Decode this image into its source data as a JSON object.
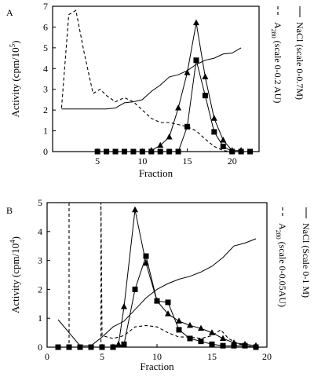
{
  "chart_data": [
    {
      "panel_label": "A",
      "type": "line",
      "xlabel": "Fraction",
      "ylabel": "Activity (cpm/10",
      "ylabel_sup": "5",
      "ylabel_close": ")",
      "right_labels": [
        {
          "text": "A",
          "sub": "280",
          "rest": " (scale 0-0.2 AU)",
          "legend_style": "dashed"
        },
        {
          "text": "NaCl",
          "sub": "",
          "rest": "  (scale 0-0.7M)",
          "legend_style": "solid"
        }
      ],
      "xlim": [
        0,
        23
      ],
      "ylim": [
        0,
        7
      ],
      "xticks": [
        5,
        10,
        15,
        20
      ],
      "yticks": [
        0,
        1,
        2,
        3,
        4,
        5,
        6,
        7
      ],
      "series": [
        {
          "style": "dashed",
          "marker": "none",
          "points": [
            [
              1,
              2.1
            ],
            [
              1.8,
              6.6
            ],
            [
              2.6,
              6.8
            ],
            [
              3.5,
              4.8
            ],
            [
              4.5,
              2.8
            ],
            [
              5.3,
              3.0
            ],
            [
              6,
              2.7
            ],
            [
              7,
              2.4
            ],
            [
              8,
              2.6
            ],
            [
              9,
              2.4
            ],
            [
              10,
              2.0
            ],
            [
              11,
              1.6
            ],
            [
              12,
              1.4
            ],
            [
              13,
              1.4
            ],
            [
              14,
              1.3
            ],
            [
              15,
              1.2
            ],
            [
              16,
              1.0
            ],
            [
              17,
              0.6
            ],
            [
              18,
              0.25
            ],
            [
              19,
              0.05
            ],
            [
              20,
              0.0
            ]
          ]
        },
        {
          "style": "solid",
          "marker": "none",
          "points": [
            [
              1,
              2.05
            ],
            [
              6,
              2.05
            ],
            [
              7,
              2.1
            ],
            [
              8,
              2.35
            ],
            [
              9,
              2.4
            ],
            [
              10,
              2.5
            ],
            [
              11,
              2.9
            ],
            [
              12,
              3.2
            ],
            [
              13,
              3.6
            ],
            [
              14,
              3.7
            ],
            [
              15,
              3.9
            ],
            [
              16,
              4.2
            ],
            [
              17,
              4.4
            ],
            [
              18,
              4.5
            ],
            [
              19,
              4.7
            ],
            [
              20,
              4.75
            ],
            [
              21,
              5.0
            ]
          ]
        },
        {
          "style": "solid",
          "marker": "triangle",
          "points": [
            [
              11,
              0.05
            ],
            [
              12,
              0.3
            ],
            [
              13,
              0.7
            ],
            [
              14,
              2.1
            ],
            [
              15,
              3.8
            ],
            [
              16,
              6.2
            ],
            [
              17,
              3.6
            ],
            [
              18,
              1.6
            ],
            [
              19,
              0.55
            ],
            [
              20,
              0.05
            ],
            [
              21,
              0.05
            ]
          ]
        },
        {
          "style": "solid",
          "marker": "square",
          "points": [
            [
              5,
              0.0
            ],
            [
              6,
              0.0
            ],
            [
              7,
              0.0
            ],
            [
              8,
              0.0
            ],
            [
              9,
              0.0
            ],
            [
              10,
              0.0
            ],
            [
              11,
              0.0
            ],
            [
              12,
              0.0
            ],
            [
              13,
              0.0
            ],
            [
              14,
              0.0
            ],
            [
              15,
              1.2
            ],
            [
              16,
              4.4
            ],
            [
              17,
              2.7
            ],
            [
              18,
              0.95
            ],
            [
              19,
              0.25
            ],
            [
              20,
              0.0
            ],
            [
              21,
              0.0
            ],
            [
              22,
              0.0
            ]
          ]
        }
      ]
    },
    {
      "panel_label": "B",
      "type": "line",
      "xlabel": "Fraction",
      "ylabel": "Activity (cpm/10",
      "ylabel_sup": "4",
      "ylabel_close": ")",
      "right_labels": [
        {
          "text": "A",
          "sub": "280",
          "rest": " (scale 0-0.05AU)",
          "legend_style": "dashed"
        },
        {
          "text": "NaCl",
          "sub": "",
          "rest": " (Scale 0-1 M)",
          "legend_style": "solid"
        }
      ],
      "xlim": [
        0,
        20
      ],
      "ylim": [
        0,
        5
      ],
      "xticks": [
        0,
        5,
        10,
        15,
        20
      ],
      "yticks": [
        0,
        1,
        2,
        3,
        4,
        5
      ],
      "series": [
        {
          "style": "dashed",
          "marker": "none",
          "points": [
            [
              2,
              5.0
            ],
            [
              2,
              0.0
            ],
            [
              4.9,
              0.0
            ],
            [
              4.9,
              5.0
            ],
            [
              5,
              0.4
            ],
            [
              6,
              0.3
            ],
            [
              7,
              0.4
            ],
            [
              8,
              0.7
            ],
            [
              9,
              0.75
            ],
            [
              10,
              0.7
            ],
            [
              11,
              0.5
            ],
            [
              12,
              0.35
            ],
            [
              13,
              0.35
            ],
            [
              14,
              0.3
            ],
            [
              15,
              0.4
            ],
            [
              15.8,
              0.6
            ],
            [
              16.5,
              0.3
            ],
            [
              17.5,
              0.1
            ],
            [
              18.5,
              0.05
            ]
          ]
        },
        {
          "style": "solid",
          "marker": "none",
          "points": [
            [
              1,
              0.95
            ],
            [
              2,
              0.5
            ],
            [
              3,
              0.05
            ],
            [
              4,
              0.05
            ],
            [
              5,
              0.35
            ],
            [
              6,
              0.7
            ],
            [
              7,
              0.9
            ],
            [
              8,
              1.3
            ],
            [
              9,
              1.7
            ],
            [
              10,
              2.0
            ],
            [
              11,
              2.2
            ],
            [
              12,
              2.35
            ],
            [
              13,
              2.45
            ],
            [
              14,
              2.6
            ],
            [
              15,
              2.8
            ],
            [
              16,
              3.1
            ],
            [
              17,
              3.5
            ],
            [
              18,
              3.6
            ],
            [
              19,
              3.75
            ]
          ]
        },
        {
          "style": "solid",
          "marker": "triangle",
          "points": [
            [
              6,
              0.0
            ],
            [
              6.5,
              0.1
            ],
            [
              7,
              1.4
            ],
            [
              8,
              4.75
            ],
            [
              9,
              2.9
            ],
            [
              10,
              1.6
            ],
            [
              11,
              1.15
            ],
            [
              12,
              0.9
            ],
            [
              13,
              0.75
            ],
            [
              14,
              0.65
            ],
            [
              15,
              0.5
            ],
            [
              16,
              0.3
            ],
            [
              17,
              0.15
            ],
            [
              18,
              0.1
            ],
            [
              19,
              0.05
            ]
          ]
        },
        {
          "style": "solid",
          "marker": "square",
          "points": [
            [
              1,
              0.0
            ],
            [
              2,
              0.0
            ],
            [
              3,
              0.0
            ],
            [
              4,
              0.0
            ],
            [
              5,
              0.0
            ],
            [
              6,
              0.0
            ],
            [
              7,
              0.1
            ],
            [
              8,
              2.0
            ],
            [
              9,
              3.15
            ],
            [
              10,
              1.6
            ],
            [
              11,
              1.55
            ],
            [
              12,
              0.6
            ],
            [
              13,
              0.3
            ],
            [
              14,
              0.2
            ],
            [
              15,
              0.1
            ],
            [
              16,
              0.05
            ],
            [
              17,
              0.05
            ],
            [
              18,
              0.05
            ],
            [
              19,
              0.0
            ]
          ]
        }
      ]
    }
  ]
}
